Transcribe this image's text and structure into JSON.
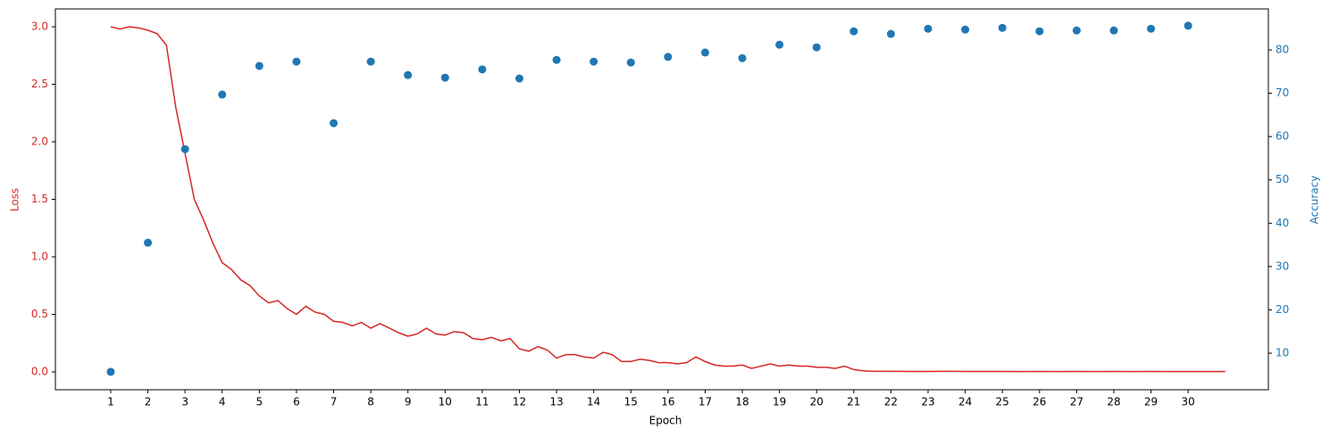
{
  "chart_data": {
    "type": "line",
    "xlabel": "Epoch",
    "ylabel": "Loss",
    "y2label": "Accuracy",
    "xlim": [
      -0.49,
      32.16
    ],
    "ylim": [
      -0.155,
      3.155
    ],
    "y2lim": [
      1.56,
      89.47
    ],
    "xticks": [
      1,
      2,
      3,
      4,
      5,
      6,
      7,
      8,
      9,
      10,
      11,
      12,
      13,
      14,
      15,
      16,
      17,
      18,
      19,
      20,
      21,
      22,
      23,
      24,
      25,
      26,
      27,
      28,
      29,
      30
    ],
    "yticks": [
      {
        "value": 0,
        "label": "0.0"
      },
      0.5,
      {
        "value": 1,
        "label": "1.0"
      },
      1.5,
      {
        "value": 2,
        "label": "2.0"
      },
      2.5,
      {
        "value": 3,
        "label": "3.0"
      }
    ],
    "y2ticks": [
      10,
      20,
      30,
      40,
      50,
      60,
      70,
      80
    ],
    "ycolor": "#d62728",
    "y2color": "#1f77b4",
    "series": [
      {
        "type": "line",
        "color": "#d62728",
        "x": [
          1,
          1.25,
          1.5,
          1.75,
          2,
          2.25,
          2.5,
          2.75,
          3,
          3.25,
          3.5,
          3.75,
          4,
          4.25,
          4.5,
          4.75,
          5,
          5.25,
          5.5,
          5.75,
          6,
          6.25,
          6.5,
          6.75,
          7,
          7.25,
          7.5,
          7.75,
          8,
          8.25,
          8.5,
          8.75,
          9,
          9.25,
          9.5,
          9.75,
          10,
          10.25,
          10.5,
          10.75,
          11,
          11.25,
          11.5,
          11.75,
          12,
          12.25,
          12.5,
          12.75,
          13,
          13.25,
          13.5,
          13.75,
          14,
          14.25,
          14.5,
          14.75,
          15,
          15.25,
          15.5,
          15.75,
          16,
          16.25,
          16.5,
          16.75,
          17,
          17.25,
          17.5,
          17.75,
          18,
          18.25,
          18.5,
          18.75,
          19,
          19.25,
          19.5,
          19.75,
          20,
          20.25,
          20.5,
          20.75,
          21,
          21.25,
          21.5,
          22,
          22.5,
          23,
          23.5,
          24,
          24.5,
          25,
          25.5,
          26,
          26.5,
          27,
          27.5,
          28,
          28.5,
          29,
          29.5,
          30,
          30.5,
          31
        ],
        "values": [
          3.0,
          2.98,
          3.0,
          2.99,
          2.97,
          2.94,
          2.84,
          2.3,
          1.9,
          1.5,
          1.32,
          1.12,
          0.95,
          0.89,
          0.8,
          0.75,
          0.66,
          0.6,
          0.62,
          0.55,
          0.5,
          0.57,
          0.52,
          0.5,
          0.44,
          0.43,
          0.4,
          0.43,
          0.38,
          0.42,
          0.38,
          0.34,
          0.31,
          0.33,
          0.38,
          0.33,
          0.32,
          0.35,
          0.34,
          0.29,
          0.28,
          0.3,
          0.27,
          0.29,
          0.2,
          0.18,
          0.22,
          0.19,
          0.12,
          0.15,
          0.15,
          0.13,
          0.12,
          0.17,
          0.15,
          0.09,
          0.09,
          0.11,
          0.1,
          0.08,
          0.08,
          0.07,
          0.08,
          0.13,
          0.09,
          0.06,
          0.05,
          0.05,
          0.06,
          0.03,
          0.05,
          0.07,
          0.05,
          0.06,
          0.05,
          0.05,
          0.04,
          0.04,
          0.03,
          0.05,
          0.02,
          0.01,
          0.005,
          0.005,
          0.004,
          0.004,
          0.005,
          0.004,
          0.004,
          0.004,
          0.003,
          0.004,
          0.003,
          0.004,
          0.003,
          0.004,
          0.003,
          0.004,
          0.003,
          0.003,
          0.003,
          0.003
        ]
      },
      {
        "type": "scatter",
        "axis": "y2",
        "color": "#1f77b4",
        "x": [
          1,
          2,
          3,
          4,
          5,
          6,
          7,
          8,
          9,
          10,
          11,
          12,
          13,
          14,
          15,
          16,
          17,
          18,
          19,
          20,
          21,
          22,
          23,
          24,
          25,
          26,
          27,
          28,
          29,
          30
        ],
        "values": [
          5.7,
          35.5,
          57.1,
          69.7,
          76.3,
          77.3,
          63.1,
          77.3,
          74.2,
          73.6,
          75.5,
          73.4,
          77.7,
          77.3,
          77.1,
          78.4,
          79.4,
          78.1,
          81.2,
          80.6,
          84.3,
          83.7,
          84.9,
          84.7,
          85.1,
          84.3,
          84.5,
          84.5,
          84.9,
          85.6
        ]
      }
    ]
  }
}
